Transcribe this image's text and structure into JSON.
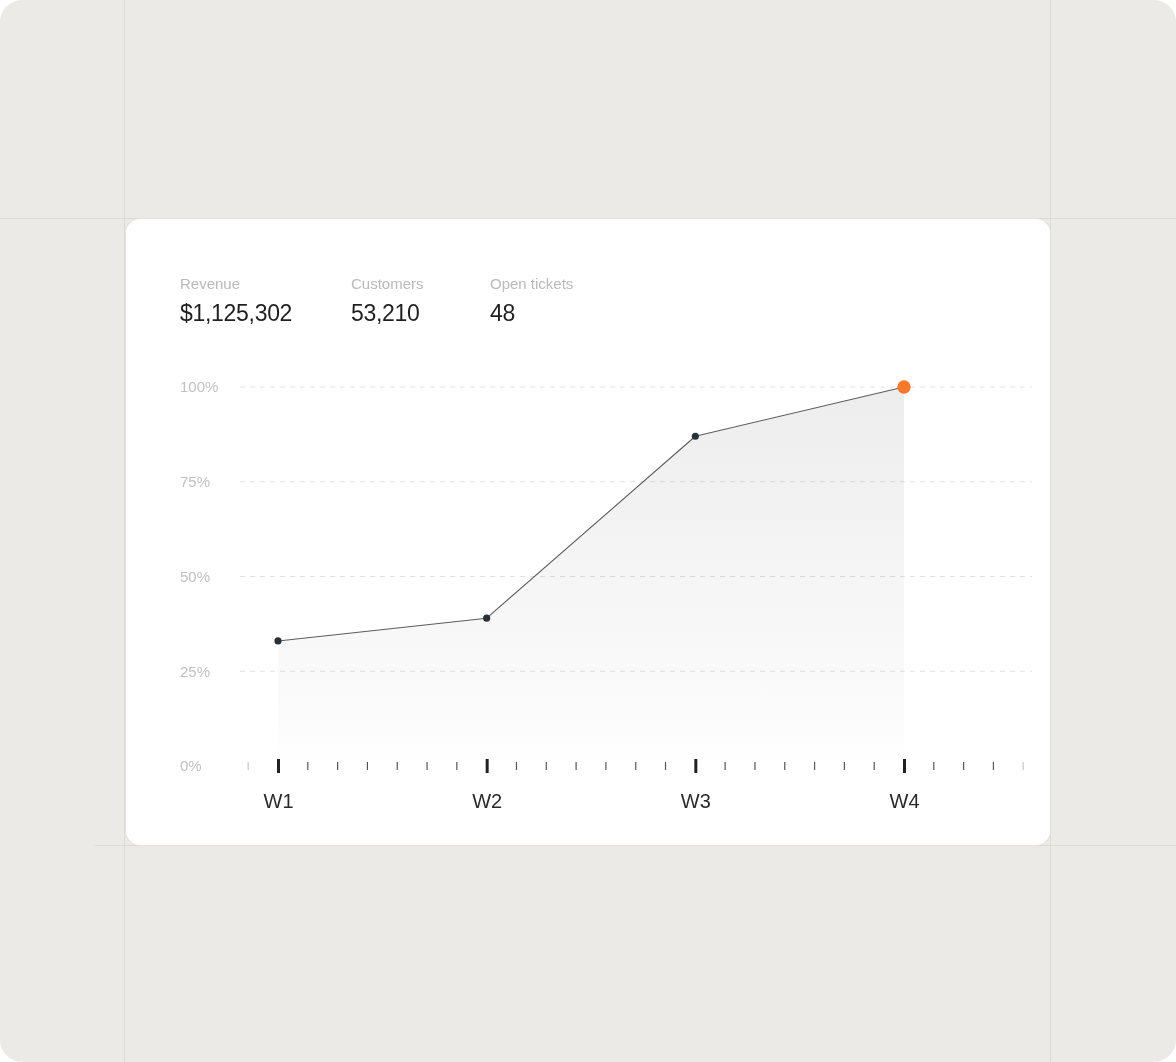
{
  "chart_data": [
    {
      "type": "other",
      "categories": [
        "Revenue",
        "Customers",
        "Open tickets"
      ],
      "value_labels": [
        "$1,125,302",
        "53,210",
        "48"
      ]
    },
    {
      "type": "area",
      "categories": [
        "W1",
        "W2",
        "W3",
        "W4"
      ],
      "series": [
        {
          "color": "#5c5c5c",
          "colors": [
            "#263238",
            "#263238",
            "#263238",
            "#f97a2a"
          ],
          "values": [
            33,
            39,
            87,
            100
          ]
        }
      ],
      "ylim": [
        0,
        100
      ],
      "yticks": [
        {
          "value": 0,
          "label": "0%"
        },
        {
          "value": 25,
          "label": "25%"
        },
        {
          "value": 50,
          "label": "50%"
        },
        {
          "value": 75,
          "label": "75%"
        },
        {
          "value": 100,
          "label": "100%"
        }
      ],
      "grid": "y",
      "marker": "circle"
    }
  ]
}
